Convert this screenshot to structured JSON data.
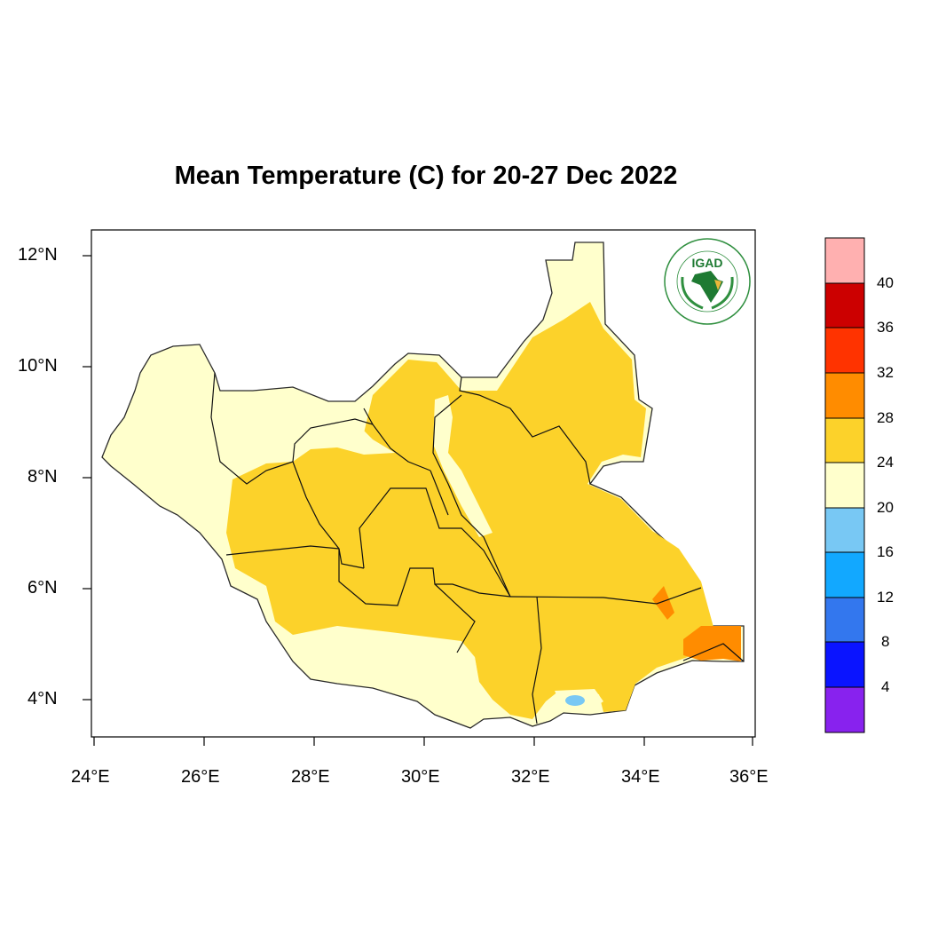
{
  "title": "Mean Temperature (C) for 20-27 Dec 2022",
  "map": {
    "region": "South Sudan",
    "lon_range": [
      24,
      36
    ],
    "lat_range": [
      3.3,
      12.4
    ],
    "x_ticks": [
      "24°E",
      "26°E",
      "28°E",
      "30°E",
      "32°E",
      "34°E",
      "36°E"
    ],
    "y_ticks": [
      "12°N",
      "10°N",
      "8°N",
      "6°N",
      "4°N"
    ],
    "grid": false,
    "dominant_field": "20-24 in the west, south-west and north tip; 24-28 over most of the country; 28-32 in the south-east corner; a small 16-20 patch near 32.8°E 4°N"
  },
  "logo": {
    "name": "igad-logo",
    "text": "IGAD",
    "ring_text": "INTERGOVERNMENTAL AUTHORITY ON DEVELOPMENT"
  },
  "colorbar": {
    "labels": [
      "40",
      "36",
      "32",
      "28",
      "24",
      "20",
      "16",
      "12",
      "8",
      "4"
    ],
    "colors": [
      "#ffb0b0",
      "#cc0000",
      "#ff3300",
      "#ff8c00",
      "#fcd22a",
      "#ffffcc",
      "#78c8f4",
      "#12a8ff",
      "#3377ee",
      "#0a14ff",
      "#8822ee"
    ]
  },
  "colors": {
    "cool": "#ffffcc",
    "warm": "#fcd22a",
    "hot": "#ff8c00",
    "mild_cold": "#78c8f4"
  }
}
